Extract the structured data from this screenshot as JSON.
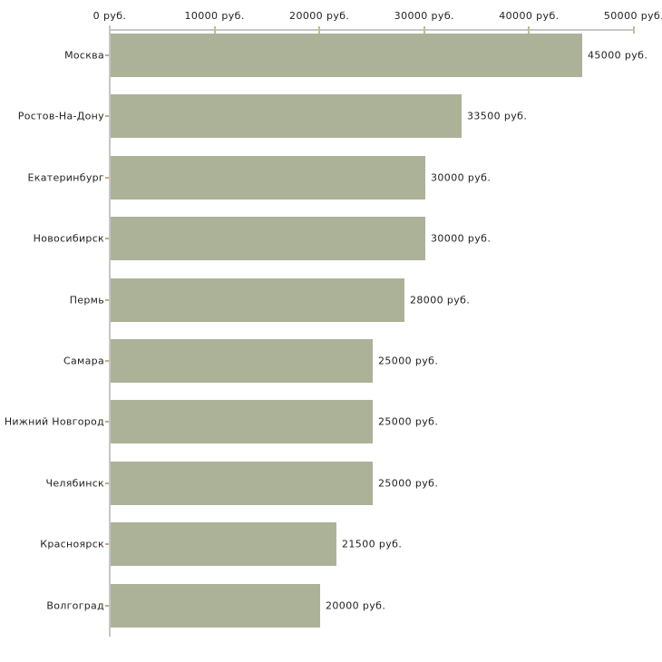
{
  "chart_data": {
    "type": "bar",
    "orientation": "horizontal",
    "title": "",
    "xlabel": "",
    "ylabel": "",
    "unit": "руб.",
    "categories": [
      "Москва",
      "Ростов-На-Дону",
      "Екатеринбург",
      "Новосибирск",
      "Пермь",
      "Самара",
      "Нижний Новгород",
      "Челябинск",
      "Красноярск",
      "Волгоград"
    ],
    "values": [
      45000,
      33500,
      30000,
      30000,
      28000,
      25000,
      25000,
      25000,
      21500,
      20000
    ],
    "value_labels": [
      "45000 руб.",
      "33500 руб.",
      "30000 руб.",
      "30000 руб.",
      "28000 руб.",
      "25000 руб.",
      "25000 руб.",
      "25000 руб.",
      "21500 руб.",
      "20000 руб."
    ],
    "x_axis": {
      "position": "top",
      "range": [
        0,
        50000
      ],
      "ticks": [
        0,
        10000,
        20000,
        30000,
        40000,
        50000
      ],
      "tick_labels": [
        "0 руб.",
        "10000 руб.",
        "20000 руб.",
        "30000 руб.",
        "40000 руб.",
        "50000 руб."
      ]
    },
    "grid": false,
    "legend": false,
    "colors": {
      "bar": "#acb298",
      "axis_line": "#c6c6c6",
      "axis_tick": "#c2bd92",
      "category_tick": "#c9ab81",
      "text": "#1f1f1f",
      "background": "#ffffff"
    }
  }
}
